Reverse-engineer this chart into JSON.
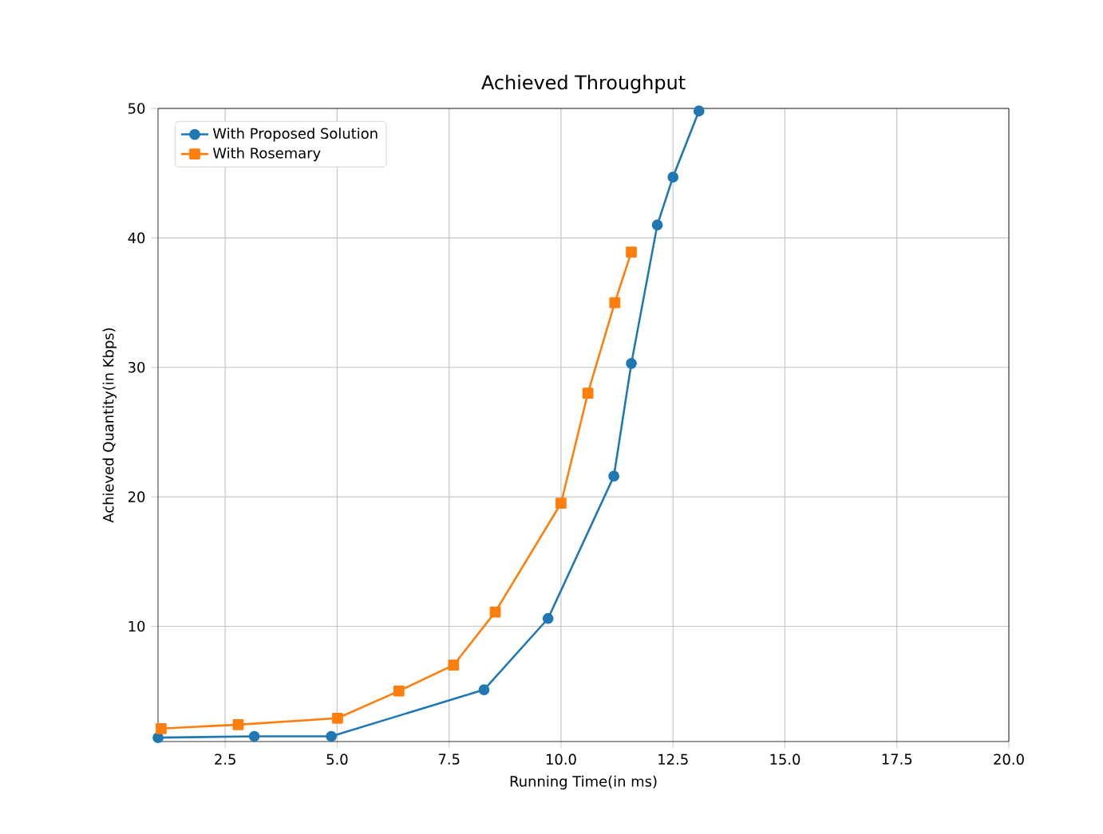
{
  "chart_data": {
    "type": "line",
    "title": "Achieved Throughput",
    "xlabel": "Running Time(in ms)",
    "ylabel": "Achieved Quantity(in Kbps)",
    "series": [
      {
        "name": "With Proposed Solution",
        "color": "#1f77b4",
        "marker": "circle",
        "x": [
          1,
          3.15,
          4.87,
          8.28,
          9.71,
          11.18,
          11.57,
          12.15,
          12.5,
          13.08
        ],
        "values": [
          1.4,
          1.5,
          1.5,
          5.1,
          10.6,
          21.6,
          30.3,
          41,
          44.7,
          49.8
        ]
      },
      {
        "name": "With Rosemary",
        "color": "#ff7f0e",
        "marker": "square",
        "x": [
          1.07,
          2.79,
          5.01,
          6.38,
          7.6,
          8.53,
          10,
          10.6,
          11.2,
          11.57
        ],
        "values": [
          2.1,
          2.4,
          2.9,
          5,
          7,
          11.1,
          19.5,
          28,
          35,
          38.9
        ]
      }
    ],
    "xlim": [
      1,
      20
    ],
    "ylim": [
      1.1,
      50
    ],
    "xticks": [
      {
        "value": 2.5,
        "label": "2.5"
      },
      {
        "value": 5,
        "label": "5.0"
      },
      {
        "value": 7.5,
        "label": "7.5"
      },
      {
        "value": 10,
        "label": "10.0"
      },
      {
        "value": 12.5,
        "label": "12.5"
      },
      {
        "value": 15,
        "label": "15.0"
      },
      {
        "value": 17.5,
        "label": "17.5"
      },
      {
        "value": 20,
        "label": "20.0"
      }
    ],
    "yticks": [
      10,
      20,
      30,
      40,
      50
    ],
    "grid": true,
    "legend": "top left",
    "line_style": "solid"
  }
}
